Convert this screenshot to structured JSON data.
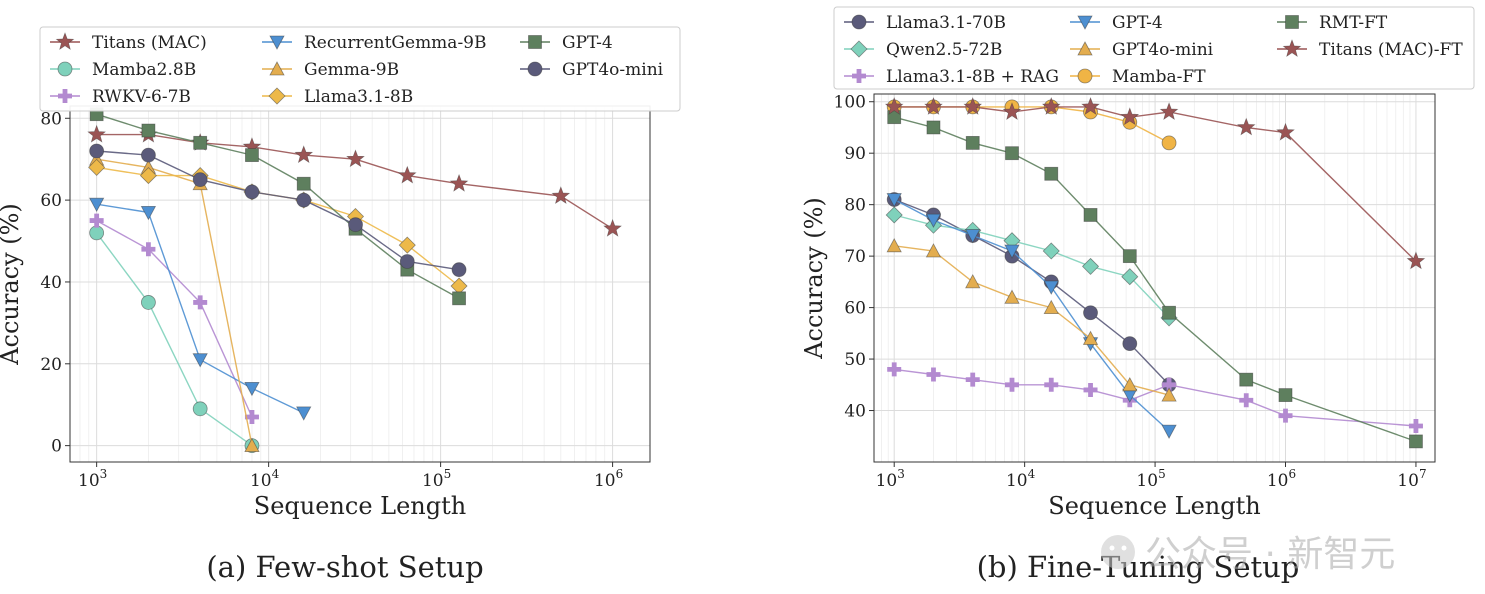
{
  "watermark": "公众号 · 新智元",
  "chart_data": [
    {
      "type": "line",
      "caption": "(a) Few-shot Setup",
      "xlabel": "Sequence Length",
      "ylabel": "Accuracy (%)",
      "xscale": "log",
      "xlim": [
        700,
        1650000
      ],
      "ylim": [
        -4,
        83
      ],
      "yticks": [
        0,
        20,
        40,
        60,
        80
      ],
      "xticks": [
        1000,
        10000,
        100000,
        1000000
      ],
      "xtick_labels": [
        [
          "10",
          "3"
        ],
        [
          "10",
          "4"
        ],
        [
          "10",
          "5"
        ],
        [
          "10",
          "6"
        ]
      ],
      "grid": true,
      "legend": {
        "position": "top",
        "columns": 3
      },
      "series": [
        {
          "name": "Titans (MAC)",
          "color": "#9a5454",
          "marker": "star",
          "x": [
            1000,
            2000,
            4000,
            8000,
            16000,
            32000,
            64000,
            128000,
            500000,
            1000000
          ],
          "y": [
            76,
            76,
            74,
            73,
            71,
            70,
            66,
            64,
            61,
            53
          ]
        },
        {
          "name": "Mamba2.8B",
          "color": "#7fd1bb",
          "marker": "circle",
          "x": [
            1000,
            2000,
            4000,
            8000
          ],
          "y": [
            52,
            35,
            9,
            0
          ]
        },
        {
          "name": "RWKV-6-7B",
          "color": "#b38ad0",
          "marker": "plus",
          "x": [
            1000,
            2000,
            4000,
            8000
          ],
          "y": [
            55,
            48,
            35,
            7
          ]
        },
        {
          "name": "RecurrentGemma-9B",
          "color": "#4d8fd1",
          "marker": "tri-down",
          "x": [
            1000,
            2000,
            4000,
            8000,
            16000
          ],
          "y": [
            59,
            57,
            21,
            14,
            8
          ]
        },
        {
          "name": "Gemma-9B",
          "color": "#e3ad4f",
          "marker": "tri-up",
          "x": [
            1000,
            2000,
            4000,
            8000
          ],
          "y": [
            70,
            68,
            64,
            0
          ]
        },
        {
          "name": "Llama3.1-8B",
          "color": "#edb949",
          "marker": "diamond",
          "x": [
            1000,
            2000,
            4000,
            8000,
            16000,
            32000,
            64000,
            128000
          ],
          "y": [
            68,
            66,
            66,
            62,
            60,
            56,
            49,
            39
          ]
        },
        {
          "name": "GPT-4",
          "color": "#5e7f5e",
          "marker": "square",
          "x": [
            1000,
            2000,
            4000,
            8000,
            16000,
            32000,
            64000,
            128000
          ],
          "y": [
            81,
            77,
            74,
            71,
            64,
            53,
            43,
            36
          ]
        },
        {
          "name": "GPT4o-mini",
          "color": "#5a5a7a",
          "marker": "circle",
          "x": [
            1000,
            2000,
            4000,
            8000,
            16000,
            32000,
            64000,
            128000
          ],
          "y": [
            72,
            71,
            65,
            62,
            60,
            54,
            45,
            43
          ]
        }
      ]
    },
    {
      "type": "line",
      "caption": "(b) Fine-Tuning Setup",
      "xlabel": "Sequence Length",
      "ylabel": "Accuracy (%)",
      "xscale": "log",
      "xlim": [
        700,
        14000000
      ],
      "ylim": [
        30,
        101.5
      ],
      "yticks": [
        40,
        50,
        60,
        70,
        80,
        90,
        100
      ],
      "xticks": [
        1000,
        10000,
        100000,
        1000000,
        10000000
      ],
      "xtick_labels": [
        [
          "10",
          "3"
        ],
        [
          "10",
          "4"
        ],
        [
          "10",
          "5"
        ],
        [
          "10",
          "6"
        ],
        [
          "10",
          "7"
        ]
      ],
      "grid": true,
      "legend": {
        "position": "top",
        "columns": 3
      },
      "series": [
        {
          "name": "Llama3.1-70B",
          "color": "#5a5a7a",
          "marker": "circle",
          "x": [
            1000,
            2000,
            4000,
            8000,
            16000,
            32000,
            64000,
            128000
          ],
          "y": [
            81,
            78,
            74,
            70,
            65,
            59,
            53,
            45
          ]
        },
        {
          "name": "Qwen2.5-72B",
          "color": "#7fd1bb",
          "marker": "diamond",
          "x": [
            1000,
            2000,
            4000,
            8000,
            16000,
            32000,
            64000,
            128000
          ],
          "y": [
            78,
            76,
            75,
            73,
            71,
            68,
            66,
            58
          ]
        },
        {
          "name": "Llama3.1-8B + RAG",
          "color": "#b38ad0",
          "marker": "plus",
          "x": [
            1000,
            2000,
            4000,
            8000,
            16000,
            32000,
            64000,
            128000,
            500000,
            1000000,
            10000000
          ],
          "y": [
            48,
            47,
            46,
            45,
            45,
            44,
            42,
            45,
            42,
            39,
            37
          ]
        },
        {
          "name": "GPT-4",
          "color": "#4d8fd1",
          "marker": "tri-down",
          "x": [
            1000,
            2000,
            4000,
            8000,
            16000,
            32000,
            64000,
            128000
          ],
          "y": [
            81,
            77,
            74,
            71,
            64,
            53,
            43,
            36
          ]
        },
        {
          "name": "GPT4o-mini",
          "color": "#e3ad4f",
          "marker": "tri-up",
          "x": [
            1000,
            2000,
            4000,
            8000,
            16000,
            32000,
            64000,
            128000
          ],
          "y": [
            72,
            71,
            65,
            62,
            60,
            54,
            45,
            43
          ]
        },
        {
          "name": "Mamba-FT",
          "color": "#f0b445",
          "marker": "circle",
          "x": [
            1000,
            2000,
            4000,
            8000,
            16000,
            32000,
            64000,
            128000
          ],
          "y": [
            99,
            99,
            99,
            99,
            99,
            98,
            96,
            92
          ]
        },
        {
          "name": "RMT-FT",
          "color": "#5e7f5e",
          "marker": "square",
          "x": [
            1000,
            2000,
            4000,
            8000,
            16000,
            32000,
            64000,
            128000,
            500000,
            1000000,
            10000000
          ],
          "y": [
            97,
            95,
            92,
            90,
            86,
            78,
            70,
            59,
            46,
            43,
            34
          ]
        },
        {
          "name": "Titans (MAC)-FT",
          "color": "#9a5454",
          "marker": "star",
          "x": [
            1000,
            2000,
            4000,
            8000,
            16000,
            32000,
            64000,
            128000,
            500000,
            1000000,
            10000000
          ],
          "y": [
            99,
            99,
            99,
            98,
            99,
            99,
            97,
            98,
            95,
            94,
            69
          ]
        }
      ]
    }
  ]
}
